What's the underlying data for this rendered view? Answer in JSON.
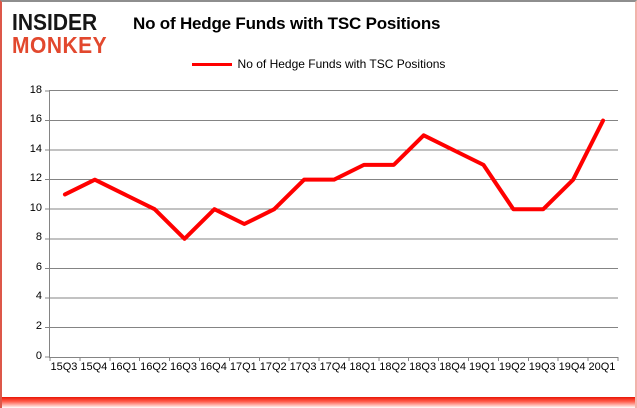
{
  "branding": {
    "logo_line1": "INSIDER",
    "logo_line2": "MONKEY",
    "logo_color_top": "#161616",
    "logo_color_bottom": "#e2482e"
  },
  "header": {
    "title": "No of Hedge Funds with TSC Positions"
  },
  "legend": {
    "label": "No of Hedge Funds with TSC Positions",
    "line_color": "#ff0000"
  },
  "chart_data": {
    "type": "line",
    "title": "No of Hedge Funds with TSC Positions",
    "categories": [
      "15Q3",
      "15Q4",
      "16Q1",
      "16Q2",
      "16Q3",
      "16Q4",
      "17Q1",
      "17Q2",
      "17Q3",
      "17Q4",
      "18Q1",
      "18Q2",
      "18Q3",
      "18Q4",
      "19Q1",
      "19Q2",
      "19Q3",
      "19Q4",
      "20Q1"
    ],
    "series": [
      {
        "name": "No of Hedge Funds with TSC Positions",
        "color": "#ff0000",
        "values": [
          11,
          12,
          11,
          10,
          8,
          10,
          9,
          10,
          12,
          12,
          13,
          13,
          15,
          14,
          13,
          10,
          10,
          12,
          16
        ]
      }
    ],
    "xlabel": "",
    "ylabel": "",
    "ylim": [
      0,
      18
    ],
    "ytick_step": 2,
    "grid": true,
    "legend_position": "top",
    "grid_color": "#848484"
  }
}
